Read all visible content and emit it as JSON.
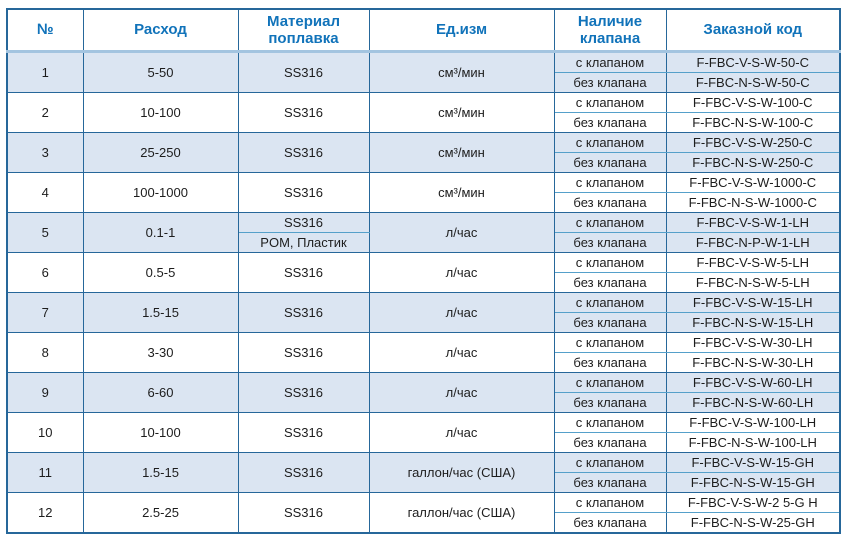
{
  "header": {
    "cols": [
      "№",
      "Расход",
      "Материал поплавка",
      "Ед.изм",
      "Наличие клапана",
      "Заказной код"
    ]
  },
  "colors": {
    "header_text": "#1173ba",
    "border_dark": "#26679a",
    "border_light": "#55a0ca",
    "header_band": "#a3c4e0",
    "row_shaded": "#dbe5f2",
    "body_text": "#1d1d1d"
  },
  "rows": [
    {
      "num": "1",
      "flow": "5-50",
      "materials": [
        "SS316"
      ],
      "unit": "см³/мин",
      "variants": [
        {
          "valve": "с клапаном",
          "code": "F-FBC-V-S-W-50-C"
        },
        {
          "valve": "без клапана",
          "code": "F-FBC-N-S-W-50-C"
        }
      ]
    },
    {
      "num": "2",
      "flow": "10-100",
      "materials": [
        "SS316"
      ],
      "unit": "см³/мин",
      "variants": [
        {
          "valve": "с клапаном",
          "code": "F-FBC-V-S-W-100-C"
        },
        {
          "valve": "без клапана",
          "code": "F-FBC-N-S-W-100-C"
        }
      ]
    },
    {
      "num": "3",
      "flow": "25-250",
      "materials": [
        "SS316"
      ],
      "unit": "см³/мин",
      "variants": [
        {
          "valve": "с клапаном",
          "code": "F-FBC-V-S-W-250-C"
        },
        {
          "valve": "без клапана",
          "code": "F-FBC-N-S-W-250-C"
        }
      ]
    },
    {
      "num": "4",
      "flow": "100-1000",
      "materials": [
        "SS316"
      ],
      "unit": "см³/мин",
      "variants": [
        {
          "valve": "с клапаном",
          "code": "F-FBC-V-S-W-1000-C"
        },
        {
          "valve": "без клапана",
          "code": "F-FBC-N-S-W-1000-C"
        }
      ]
    },
    {
      "num": "5",
      "flow": "0.1-1",
      "materials": [
        "SS316",
        "POM, Пластик"
      ],
      "unit": "л/час",
      "variants": [
        {
          "valve": "с клапаном",
          "code": "F-FBC-V-S-W-1-LH"
        },
        {
          "valve": "без клапана",
          "code": "F-FBC-N-P-W-1-LH"
        }
      ]
    },
    {
      "num": "6",
      "flow": "0.5-5",
      "materials": [
        "SS316"
      ],
      "unit": "л/час",
      "variants": [
        {
          "valve": "с клапаном",
          "code": "F-FBC-V-S-W-5-LH"
        },
        {
          "valve": "без клапана",
          "code": "F-FBC-N-S-W-5-LH"
        }
      ]
    },
    {
      "num": "7",
      "flow": "1.5-15",
      "materials": [
        "SS316"
      ],
      "unit": "л/час",
      "variants": [
        {
          "valve": "с клапаном",
          "code": "F-FBC-V-S-W-15-LH"
        },
        {
          "valve": "без клапана",
          "code": "F-FBC-N-S-W-15-LH"
        }
      ]
    },
    {
      "num": "8",
      "flow": "3-30",
      "materials": [
        "SS316"
      ],
      "unit": "л/час",
      "variants": [
        {
          "valve": "с клапаном",
          "code": "F-FBC-V-S-W-30-LH"
        },
        {
          "valve": "без клапана",
          "code": "F-FBC-N-S-W-30-LH"
        }
      ]
    },
    {
      "num": "9",
      "flow": "6-60",
      "materials": [
        "SS316"
      ],
      "unit": "л/час",
      "variants": [
        {
          "valve": "с клапаном",
          "code": "F-FBC-V-S-W-60-LH"
        },
        {
          "valve": "без клапана",
          "code": "F-FBC-N-S-W-60-LH"
        }
      ]
    },
    {
      "num": "10",
      "flow": "10-100",
      "materials": [
        "SS316"
      ],
      "unit": "л/час",
      "variants": [
        {
          "valve": "с клапаном",
          "code": "F-FBC-V-S-W-100-LH"
        },
        {
          "valve": "без клапана",
          "code": "F-FBC-N-S-W-100-LH"
        }
      ]
    },
    {
      "num": "11",
      "flow": "1.5-15",
      "materials": [
        "SS316"
      ],
      "unit": "галлон/час (США)",
      "variants": [
        {
          "valve": "с клапаном",
          "code": "F-FBC-V-S-W-15-GH"
        },
        {
          "valve": "без клапана",
          "code": "F-FBC-N-S-W-15-GH"
        }
      ]
    },
    {
      "num": "12",
      "flow": "2.5-25",
      "materials": [
        "SS316"
      ],
      "unit": "галлон/час (США)",
      "variants": [
        {
          "valve": "с клапаном",
          "code": "F-FBC-V-S-W-2 5-G H"
        },
        {
          "valve": "без клапана",
          "code": "F-FBC-N-S-W-25-GH"
        }
      ]
    }
  ]
}
